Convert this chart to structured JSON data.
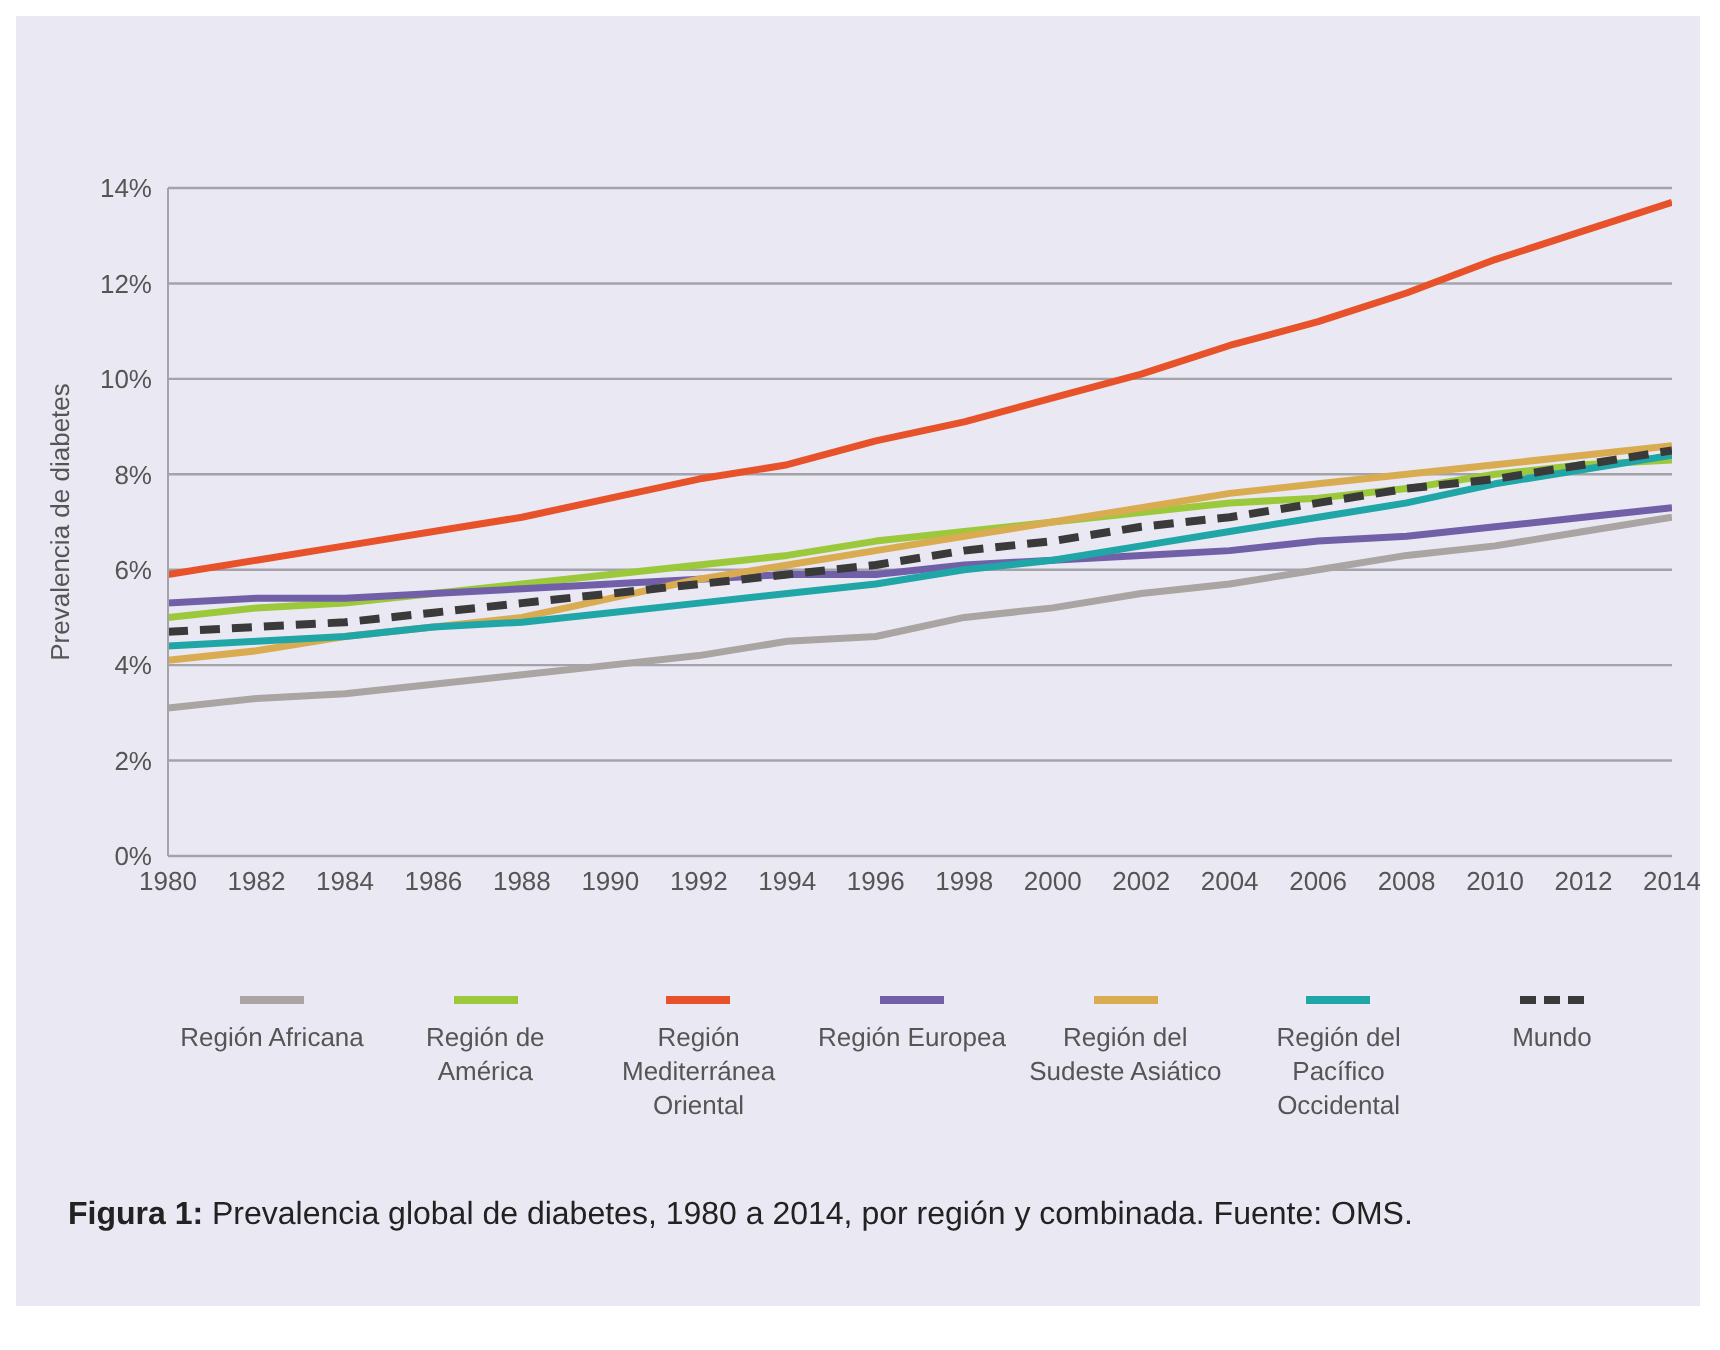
{
  "chart_data": {
    "type": "line",
    "ylabel": "Prevalencia de diabetes",
    "x": [
      1980,
      1982,
      1984,
      1986,
      1988,
      1990,
      1992,
      1994,
      1996,
      1998,
      2000,
      2002,
      2004,
      2006,
      2008,
      2010,
      2012,
      2014
    ],
    "xlim": [
      1980,
      2014
    ],
    "xticks": [
      1980,
      1982,
      1984,
      1986,
      1988,
      1990,
      1992,
      1994,
      1996,
      1998,
      2000,
      2002,
      2004,
      2006,
      2008,
      2010,
      2012,
      2014
    ],
    "ylim": [
      0,
      14
    ],
    "yticks": [
      {
        "value": 0,
        "label": "0%"
      },
      {
        "value": 2,
        "label": "2%"
      },
      {
        "value": 4,
        "label": "4%"
      },
      {
        "value": 6,
        "label": "6%"
      },
      {
        "value": 8,
        "label": "8%"
      },
      {
        "value": 10,
        "label": "10%"
      },
      {
        "value": 12,
        "label": "12%"
      },
      {
        "value": 14,
        "label": "14%"
      }
    ],
    "grid": "y",
    "legend": "bottom",
    "marker": "none",
    "series": [
      {
        "name": "Región Africana",
        "color": "#aaa5a2",
        "values": [
          3.1,
          3.3,
          3.4,
          3.6,
          3.8,
          4.0,
          4.2,
          4.5,
          4.6,
          5.0,
          5.2,
          5.5,
          5.7,
          6.0,
          6.3,
          6.5,
          6.8,
          7.1
        ]
      },
      {
        "name": "Región de América",
        "color": "#9cc93b",
        "values": [
          5.0,
          5.2,
          5.3,
          5.5,
          5.7,
          5.9,
          6.1,
          6.3,
          6.6,
          6.8,
          7.0,
          7.2,
          7.4,
          7.5,
          7.7,
          8.0,
          8.2,
          8.3
        ]
      },
      {
        "name": "Región Mediterránea Oriental",
        "color": "#e8522a",
        "values": [
          5.9,
          6.2,
          6.5,
          6.8,
          7.1,
          7.5,
          7.9,
          8.2,
          8.7,
          9.1,
          9.6,
          10.1,
          10.7,
          11.2,
          11.8,
          12.5,
          13.1,
          13.7
        ]
      },
      {
        "name": "Región Europea",
        "color": "#7160a8",
        "values": [
          5.3,
          5.4,
          5.4,
          5.5,
          5.6,
          5.7,
          5.8,
          5.9,
          5.9,
          6.1,
          6.2,
          6.3,
          6.4,
          6.6,
          6.7,
          6.9,
          7.1,
          7.3
        ]
      },
      {
        "name": "Región del Sudeste Asiático",
        "color": "#d9ac52",
        "values": [
          4.1,
          4.3,
          4.6,
          4.8,
          5.0,
          5.4,
          5.8,
          6.1,
          6.4,
          6.7,
          7.0,
          7.3,
          7.6,
          7.8,
          8.0,
          8.2,
          8.4,
          8.6
        ]
      },
      {
        "name": "Región del Pacífico Occidental",
        "color": "#20a6a6",
        "values": [
          4.4,
          4.5,
          4.6,
          4.8,
          4.9,
          5.1,
          5.3,
          5.5,
          5.7,
          6.0,
          6.2,
          6.5,
          6.8,
          7.1,
          7.4,
          7.8,
          8.1,
          8.4
        ]
      },
      {
        "name": "Mundo",
        "color": "#3a3a3a",
        "line_style": "dashed",
        "values": [
          4.7,
          4.8,
          4.9,
          5.1,
          5.3,
          5.5,
          5.7,
          5.9,
          6.1,
          6.4,
          6.6,
          6.9,
          7.1,
          7.4,
          7.7,
          7.9,
          8.2,
          8.5
        ]
      }
    ],
    "annotations": [
      "Figura 1: Prevalencia global de diabetes, 1980 a 2014, por región y combinada. Fuente: OMS."
    ]
  }
}
